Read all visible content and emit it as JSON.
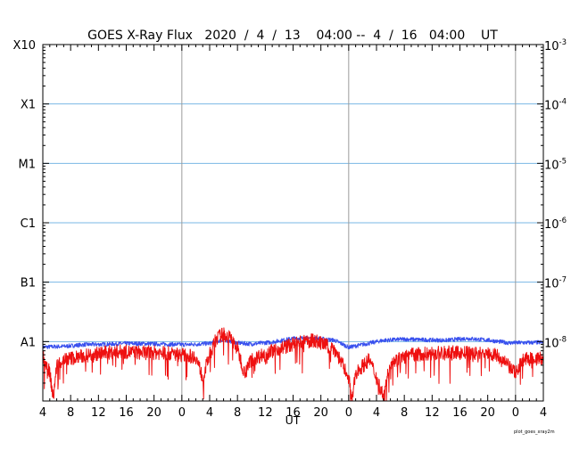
{
  "chart_data": {
    "type": "line",
    "title": "GOES X-Ray Flux   2020  /  4  /  13    04:00 --  4  /  16   04:00    UT",
    "xlabel": "UT",
    "x_start": "2020-04-13 04:00",
    "x_end": "2020-04-16 04:00",
    "x_tick_labels": [
      "4",
      "8",
      "12",
      "16",
      "20",
      "0",
      "4",
      "8",
      "12",
      "16",
      "20",
      "0",
      "4",
      "8",
      "12",
      "16",
      "20",
      "0",
      "4"
    ],
    "day_boundaries": [
      "2020-04-14 00:00",
      "2020-04-15 00:00",
      "2020-04-16 00:00"
    ],
    "y_scale": "log",
    "ylim": [
      1e-09,
      0.001
    ],
    "y_left_labels": [
      {
        "flux": 0.001,
        "label": "X10"
      },
      {
        "flux": 0.0001,
        "label": "X1"
      },
      {
        "flux": 1e-05,
        "label": "M1"
      },
      {
        "flux": 1e-06,
        "label": "C1"
      },
      {
        "flux": 1e-07,
        "label": "B1"
      },
      {
        "flux": 1e-08,
        "label": "A1"
      }
    ],
    "y_right_labels": [
      {
        "flux": 0.001,
        "base": "10",
        "exp": "-3"
      },
      {
        "flux": 0.0001,
        "base": "10",
        "exp": "-4"
      },
      {
        "flux": 1e-05,
        "base": "10",
        "exp": "-5"
      },
      {
        "flux": 1e-06,
        "base": "10",
        "exp": "-6"
      },
      {
        "flux": 1e-07,
        "base": "10",
        "exp": "-7"
      },
      {
        "flux": 1e-08,
        "base": "10",
        "exp": "-8"
      }
    ],
    "class_gridlines": [
      0.0001,
      1e-05,
      1e-06,
      1e-07,
      1e-08
    ],
    "series": [
      {
        "color": "#3850ee",
        "points": [
          [
            "2020-04-13 04:00",
            8.1e-09
          ],
          [
            "2020-04-13 07:00",
            8.3e-09
          ],
          [
            "2020-04-13 10:00",
            8.9e-09
          ],
          [
            "2020-04-13 13:00",
            9e-09
          ],
          [
            "2020-04-13 16:00",
            9.3e-09
          ],
          [
            "2020-04-13 19:00",
            9.2e-09
          ],
          [
            "2020-04-13 22:00",
            9e-09
          ],
          [
            "2020-04-14 01:00",
            8.9e-09
          ],
          [
            "2020-04-14 04:00",
            9.3e-09
          ],
          [
            "2020-04-14 06:00",
            1.08e-08
          ],
          [
            "2020-04-14 08:00",
            9.5e-09
          ],
          [
            "2020-04-14 10:00",
            9.1e-09
          ],
          [
            "2020-04-14 13:00",
            9.8e-09
          ],
          [
            "2020-04-14 16:00",
            1.13e-08
          ],
          [
            "2020-04-14 19:00",
            1.15e-08
          ],
          [
            "2020-04-14 22:00",
            1.05e-08
          ],
          [
            "2020-04-15 00:00",
            8e-09
          ],
          [
            "2020-04-15 02:00",
            8.9e-09
          ],
          [
            "2020-04-15 05:00",
            1.05e-08
          ],
          [
            "2020-04-15 08:00",
            1.1e-08
          ],
          [
            "2020-04-15 11:00",
            1.07e-08
          ],
          [
            "2020-04-15 14:00",
            1.05e-08
          ],
          [
            "2020-04-15 17:00",
            1.13e-08
          ],
          [
            "2020-04-15 20:00",
            1.06e-08
          ],
          [
            "2020-04-15 23:00",
            9.5e-09
          ],
          [
            "2020-04-16 02:00",
            9.6e-09
          ],
          [
            "2020-04-16 04:00",
            9.7e-09
          ]
        ]
      },
      {
        "color": "#ee1010",
        "points": [
          [
            "2020-04-13 04:00",
            5.6e-09
          ],
          [
            "2020-04-13 05:00",
            3e-09
          ],
          [
            "2020-04-13 05:30",
            1.1e-09
          ],
          [
            "2020-04-13 06:00",
            4e-09
          ],
          [
            "2020-04-13 07:00",
            5e-09
          ],
          [
            "2020-04-13 09:00",
            5.5e-09
          ],
          [
            "2020-04-13 12:00",
            6.3e-09
          ],
          [
            "2020-04-13 15:00",
            6.8e-09
          ],
          [
            "2020-04-13 18:00",
            6.5e-09
          ],
          [
            "2020-04-13 21:00",
            6.5e-09
          ],
          [
            "2020-04-14 00:00",
            6e-09
          ],
          [
            "2020-04-14 02:00",
            5.5e-09
          ],
          [
            "2020-04-14 03:00",
            2.5e-09
          ],
          [
            "2020-04-14 04:00",
            6e-09
          ],
          [
            "2020-04-14 05:00",
            1.15e-08
          ],
          [
            "2020-04-14 06:00",
            1.35e-08
          ],
          [
            "2020-04-14 07:00",
            1.15e-08
          ],
          [
            "2020-04-14 08:00",
            7.5e-09
          ],
          [
            "2020-04-14 09:00",
            3e-09
          ],
          [
            "2020-04-14 10:00",
            5e-09
          ],
          [
            "2020-04-14 13:00",
            7e-09
          ],
          [
            "2020-04-14 16:00",
            9e-09
          ],
          [
            "2020-04-14 19:00",
            1.05e-08
          ],
          [
            "2020-04-14 22:00",
            7.5e-09
          ],
          [
            "2020-04-15 00:00",
            2.5e-09
          ],
          [
            "2020-04-15 00:30",
            1e-09
          ],
          [
            "2020-04-15 01:00",
            3e-09
          ],
          [
            "2020-04-15 03:00",
            5e-09
          ],
          [
            "2020-04-15 05:00",
            1.2e-09
          ],
          [
            "2020-04-15 06:00",
            4.5e-09
          ],
          [
            "2020-04-15 09:00",
            6e-09
          ],
          [
            "2020-04-15 12:00",
            6.3e-09
          ],
          [
            "2020-04-15 15:00",
            6.5e-09
          ],
          [
            "2020-04-15 18:00",
            6.3e-09
          ],
          [
            "2020-04-15 21:00",
            6.2e-09
          ],
          [
            "2020-04-16 00:00",
            3e-09
          ],
          [
            "2020-04-16 01:00",
            5e-09
          ],
          [
            "2020-04-16 04:00",
            5.2e-09
          ]
        ]
      }
    ],
    "footnote": "plot_goes_xray2m"
  },
  "colors": {
    "background": "#ffffff",
    "frame": "#000000",
    "class_gridline": "#79b7e4",
    "day_gridline": "#9a9a9a"
  }
}
